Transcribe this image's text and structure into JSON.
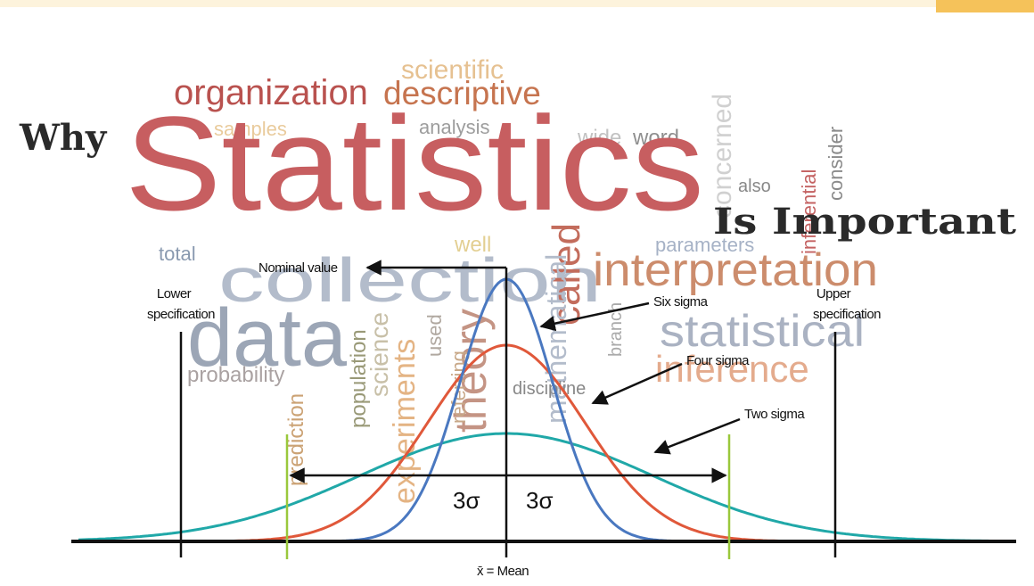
{
  "title": {
    "prefix": "Why",
    "main": "Statistics",
    "suffix": "Is Important"
  },
  "word_cloud": [
    "organization",
    "descriptive",
    "scientific",
    "analysis",
    "samples",
    "wide",
    "word",
    "collection",
    "data",
    "interpretation",
    "statistical",
    "inference",
    "parameters",
    "total",
    "well",
    "also",
    "probability",
    "theory",
    "called",
    "experiments",
    "population",
    "science",
    "prediction",
    "mathematical",
    "discipline",
    "consider",
    "inferential",
    "concerned",
    "used",
    "referring",
    "branch"
  ],
  "diagram": {
    "nominal_value": "Nominal value",
    "lower_spec": [
      "Lower",
      "specification"
    ],
    "upper_spec": [
      "Upper",
      "specification"
    ],
    "six_sigma": "Six sigma",
    "four_sigma": "Four sigma",
    "two_sigma": "Two sigma",
    "left_span": "3σ",
    "right_span": "3σ",
    "mean": "x̄ = Mean"
  }
}
